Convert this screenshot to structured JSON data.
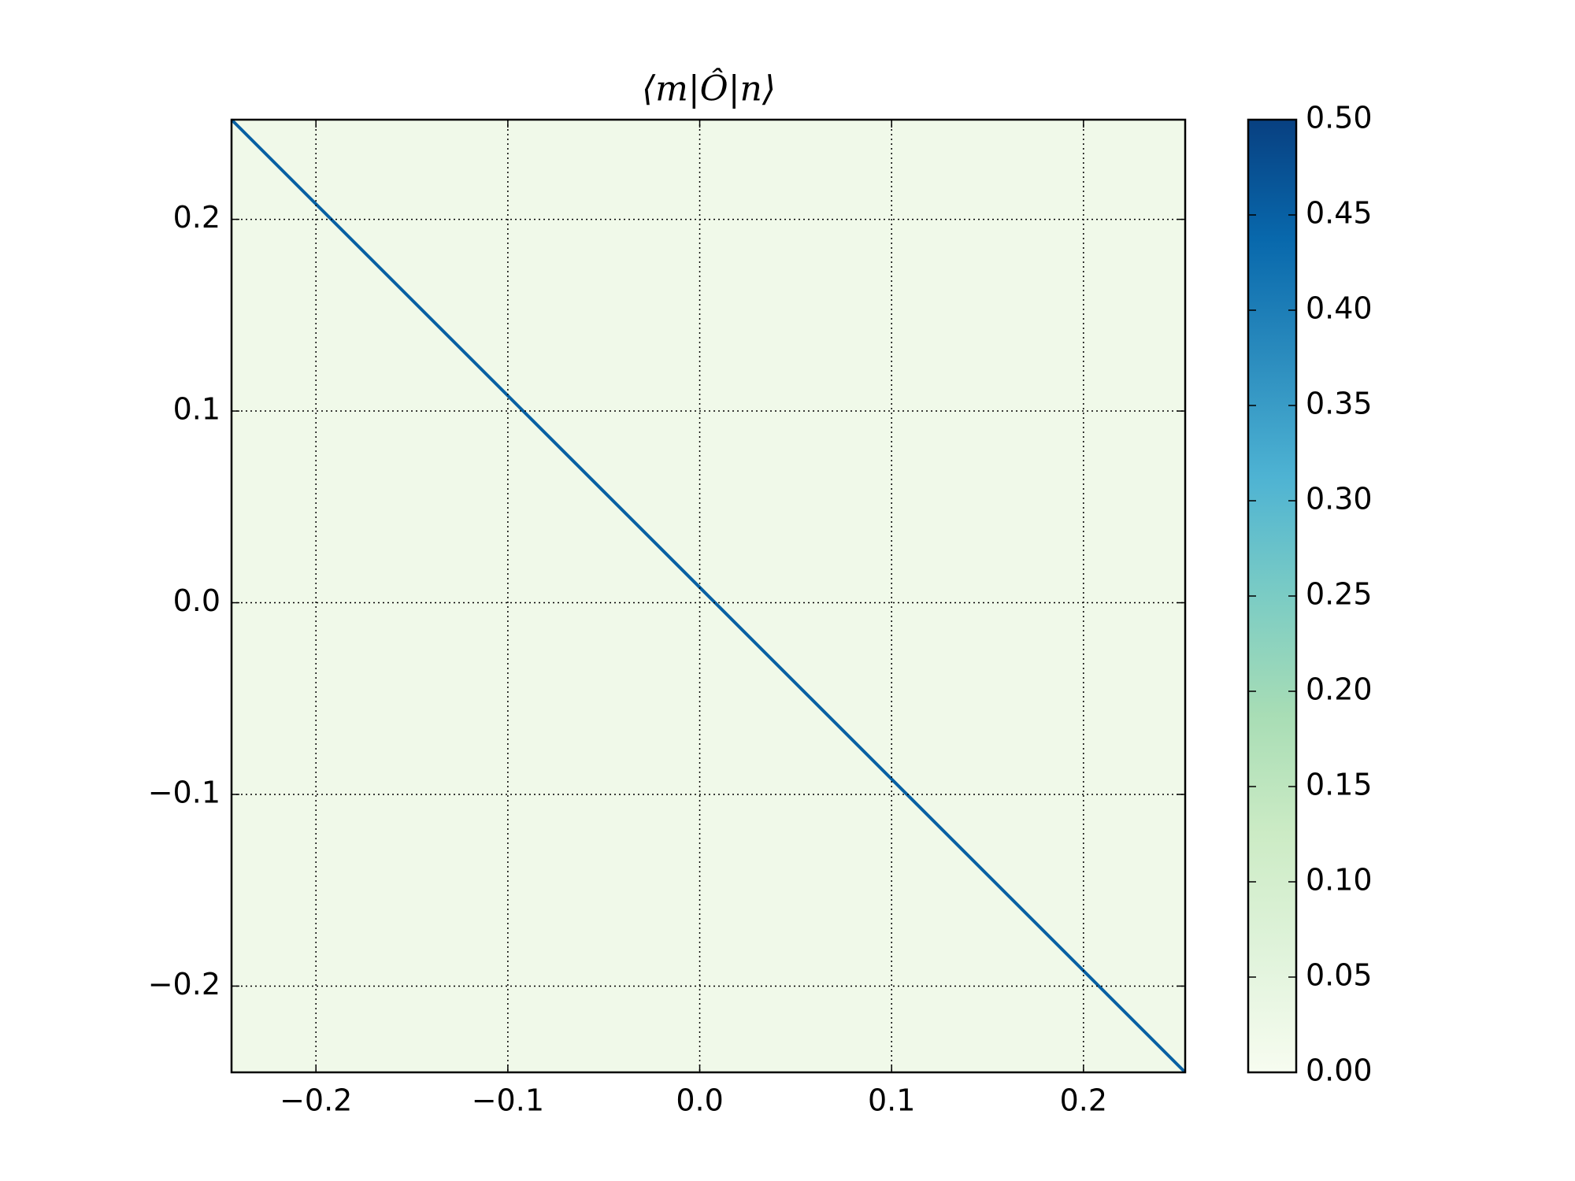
{
  "chart_data": {
    "type": "heatmap",
    "title": "⟨m|Ô|n⟩",
    "diagonal": {
      "value": 0.45
    },
    "background": {
      "value": 0.02
    },
    "xlim": [
      -0.244,
      0.253
    ],
    "ylim": [
      -0.245,
      0.252
    ],
    "xticks": [
      {
        "value": -0.2,
        "label": "−0.2"
      },
      {
        "value": -0.1,
        "label": "−0.1"
      },
      {
        "value": 0,
        "label": "0.0"
      },
      0.1,
      0.2
    ],
    "yticks": [
      {
        "value": -0.2,
        "label": "−0.2"
      },
      {
        "value": -0.1,
        "label": "−0.1"
      },
      {
        "value": 0,
        "label": "0.0"
      },
      0.1,
      0.2
    ],
    "grid": true,
    "colormap": "GnBu",
    "colors": [
      "#f7fcf0",
      "#e0f3db",
      "#ccebc5",
      "#a8ddb5",
      "#7bccc4",
      "#4eb3d3",
      "#2b8cbe",
      "#0868ac",
      "#084081"
    ],
    "clim": [
      0,
      0.5
    ],
    "cticks": [
      {
        "value": 0,
        "label": "0.00"
      },
      {
        "value": 0.05,
        "label": "0.05"
      },
      {
        "value": 0.1,
        "label": "0.10"
      },
      {
        "value": 0.15,
        "label": "0.15"
      },
      {
        "value": 0.2,
        "label": "0.20"
      },
      {
        "value": 0.25,
        "label": "0.25"
      },
      {
        "value": 0.3,
        "label": "0.30"
      },
      {
        "value": 0.35,
        "label": "0.35"
      },
      {
        "value": 0.4,
        "label": "0.40"
      },
      {
        "value": 0.45,
        "label": "0.45"
      },
      {
        "value": 0.5,
        "label": "0.50"
      }
    ]
  }
}
